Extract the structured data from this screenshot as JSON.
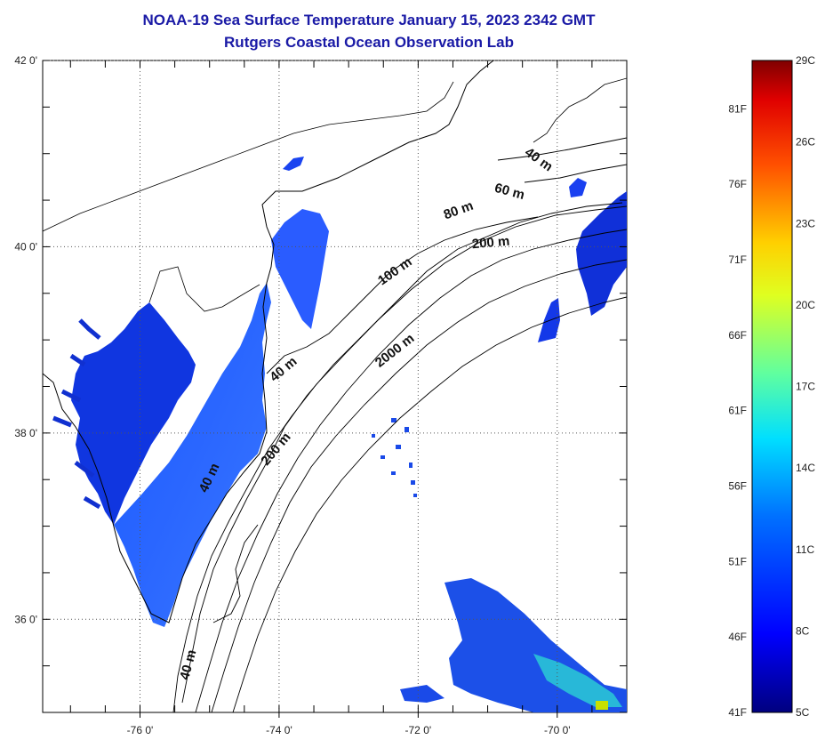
{
  "title": {
    "line1": "NOAA-19 Sea Surface Temperature January 15, 2023 2342 GMT",
    "line2": "Rutgers Coastal Ocean Observation Lab"
  },
  "axes": {
    "lon_ticks": [
      {
        "lon": -76,
        "label": "-76 0'"
      },
      {
        "lon": -74,
        "label": "-74 0'"
      },
      {
        "lon": -72,
        "label": "-72 0'"
      },
      {
        "lon": -70,
        "label": "-70 0'"
      }
    ],
    "lat_ticks": [
      {
        "lat": 42,
        "label": "42 0'"
      },
      {
        "lat": 40,
        "label": "40 0'"
      },
      {
        "lat": 38,
        "label": "38 0'"
      },
      {
        "lat": 36,
        "label": "36 0'"
      }
    ],
    "lon_range": [
      -77.4,
      -69.0
    ],
    "lat_range": [
      35.0,
      42.0
    ],
    "grid": "dotted"
  },
  "contour_labels": [
    {
      "text": "40 m",
      "lon": -70.3,
      "lat": 40.9,
      "rotate": 35
    },
    {
      "text": "60 m",
      "lon": -70.7,
      "lat": 40.55,
      "rotate": 15
    },
    {
      "text": "80 m",
      "lon": -71.4,
      "lat": 40.35,
      "rotate": -20
    },
    {
      "text": "200 m",
      "lon": -70.95,
      "lat": 40.0,
      "rotate": -5
    },
    {
      "text": "100 m",
      "lon": -72.3,
      "lat": 39.7,
      "rotate": -35
    },
    {
      "text": "2000 m",
      "lon": -72.3,
      "lat": 38.85,
      "rotate": -38
    },
    {
      "text": "40 m",
      "lon": -73.9,
      "lat": 38.65,
      "rotate": -40
    },
    {
      "text": "200 m",
      "lon": -74.0,
      "lat": 37.8,
      "rotate": -50
    },
    {
      "text": "40 m",
      "lon": -74.95,
      "lat": 37.5,
      "rotate": -65
    },
    {
      "text": "40 m",
      "lon": -75.25,
      "lat": 35.5,
      "rotate": -75
    }
  ],
  "colorbar": {
    "celsius": [
      {
        "value": 29,
        "label": "29C"
      },
      {
        "value": 26,
        "label": "26C"
      },
      {
        "value": 23,
        "label": "23C"
      },
      {
        "value": 20,
        "label": "20C"
      },
      {
        "value": 17,
        "label": "17C"
      },
      {
        "value": 14,
        "label": "14C"
      },
      {
        "value": 11,
        "label": "11C"
      },
      {
        "value": 8,
        "label": "8C"
      },
      {
        "value": 5,
        "label": "5C"
      }
    ],
    "fahrenheit": [
      {
        "value": 81,
        "label": "81F"
      },
      {
        "value": 76,
        "label": "76F"
      },
      {
        "value": 71,
        "label": "71F"
      },
      {
        "value": 66,
        "label": "66F"
      },
      {
        "value": 61,
        "label": "61F"
      },
      {
        "value": 56,
        "label": "56F"
      },
      {
        "value": 51,
        "label": "51F"
      },
      {
        "value": 46,
        "label": "46F"
      },
      {
        "value": 41,
        "label": "41F"
      }
    ],
    "range_c": [
      5,
      29
    ],
    "colormap": [
      "#000080",
      "#0000ff",
      "#0080ff",
      "#00ffff",
      "#80ff80",
      "#ffff00",
      "#ff8000",
      "#ff0000",
      "#800000"
    ]
  }
}
